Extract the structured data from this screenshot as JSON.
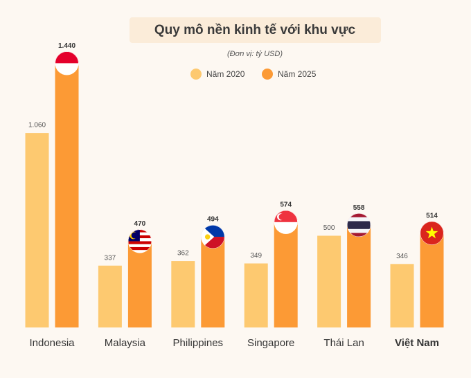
{
  "chart_data": {
    "type": "bar",
    "title": "Quy mô nền kinh tế với khu vực",
    "subtitle": "(Đơn vị: tỷ USD)",
    "categories": [
      "Indonesia",
      "Malaysia",
      "Philippines",
      "Singapore",
      "Thái Lan",
      "Việt Nam"
    ],
    "series": [
      {
        "name": "Năm 2020",
        "color": "#fdc970",
        "values": [
          1060,
          337,
          362,
          349,
          500,
          346
        ],
        "value_labels": [
          "1.060",
          "337",
          "362",
          "349",
          "500",
          "346"
        ]
      },
      {
        "name": "Năm 2025",
        "color": "#fc9a35",
        "values": [
          1440,
          470,
          494,
          574,
          558,
          514
        ],
        "value_labels": [
          "1.440",
          "470",
          "494",
          "574",
          "558",
          "514"
        ]
      }
    ]
  }
}
